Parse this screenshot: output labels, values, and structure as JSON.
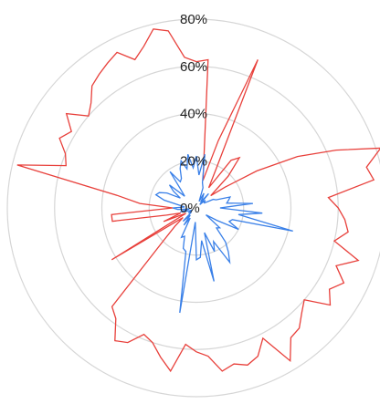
{
  "chart_data": {
    "type": "radar",
    "title": "",
    "radial_ticks": [
      "0%",
      "20%",
      "40%",
      "60%",
      "80%"
    ],
    "tick_values": [
      0,
      20,
      40,
      60,
      80
    ],
    "rmax": 80,
    "grid": true,
    "legend": "none",
    "series": [
      {
        "color": "#e8403b",
        "values_percent": [
          62,
          63,
          20,
          12,
          30,
          68,
          18,
          10,
          25,
          28,
          19,
          8,
          15,
          30,
          48,
          64,
          82,
          74,
          76,
          56,
          60,
          63,
          65,
          60,
          72,
          64,
          70,
          66,
          70,
          60,
          63,
          67,
          68,
          76,
          62,
          68,
          70,
          68,
          70,
          63,
          61,
          58,
          70,
          65,
          60,
          58,
          64,
          66,
          58,
          55,
          20,
          12,
          7,
          42,
          5,
          15,
          7,
          13,
          36,
          36,
          10,
          24,
          34,
          78,
          58,
          60,
          65,
          62,
          68,
          60,
          63,
          68,
          70,
          72,
          74,
          68,
          72,
          78,
          76,
          64
        ]
      },
      {
        "color": "#3a80e8",
        "values_percent": [
          22,
          14,
          23,
          11,
          9,
          3,
          7,
          5,
          3,
          8,
          2,
          5,
          4,
          4,
          8,
          9,
          15,
          14,
          13,
          24,
          10,
          28,
          18,
          42,
          16,
          15,
          20,
          10,
          5,
          13,
          12,
          19,
          23,
          27,
          16,
          20,
          11,
          32,
          14,
          21,
          22,
          6,
          45,
          19,
          18,
          13,
          14,
          5,
          9,
          4,
          8,
          3,
          3,
          4,
          2,
          3,
          5,
          7,
          3,
          8,
          10,
          5,
          7,
          14,
          18,
          17,
          14,
          8,
          12,
          15,
          7,
          10,
          19,
          13,
          14,
          18,
          21,
          17,
          23,
          17
        ]
      }
    ]
  }
}
